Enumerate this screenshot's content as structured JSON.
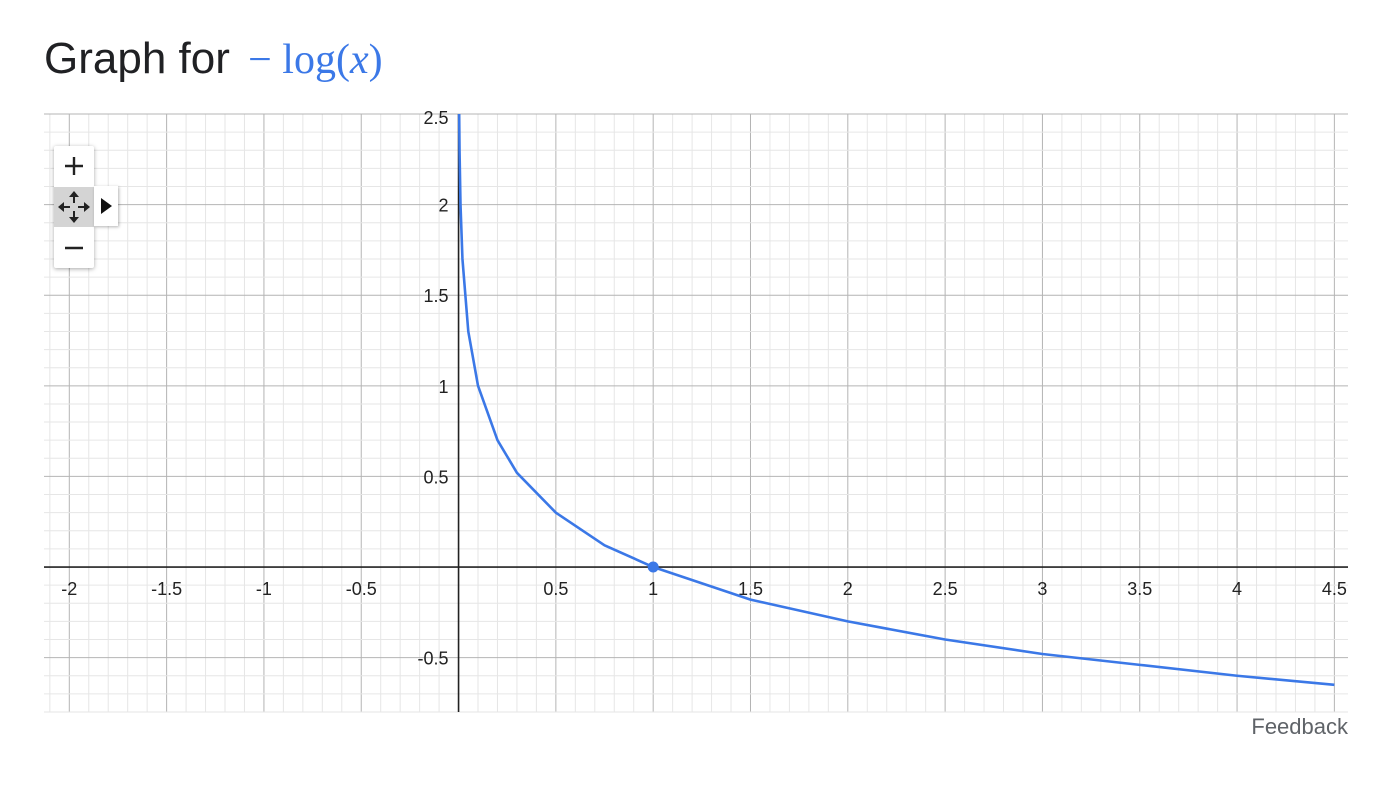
{
  "header": {
    "prefix": "Graph for",
    "func_minus": "−",
    "func_name": "log",
    "func_open": "(",
    "func_var": "x",
    "func_close": ")"
  },
  "controls": {
    "zoom_in": "+",
    "zoom_out": "−"
  },
  "footer": {
    "feedback": "Feedback"
  },
  "colors": {
    "curve": "#3b78e7",
    "grid_major": "#b4b4b4",
    "grid_minor": "#e6e6e6",
    "axis": "#222222"
  },
  "chart_data": {
    "type": "line",
    "title": "",
    "xlabel": "",
    "ylabel": "",
    "xlim": [
      -2.13,
      4.57
    ],
    "ylim": [
      -0.8,
      2.5
    ],
    "x_ticks": [
      -2,
      -1.5,
      -1,
      -0.5,
      0.5,
      1,
      1.5,
      2,
      2.5,
      3,
      3.5,
      4,
      4.5
    ],
    "x_tick_labels": [
      "-2",
      "-1.5",
      "-1",
      "-0.5",
      "0.5",
      "1",
      "1.5",
      "2",
      "2.5",
      "3",
      "3.5",
      "4",
      "4.5"
    ],
    "y_ticks": [
      2.5,
      2,
      1.5,
      1,
      0.5,
      -0.5
    ],
    "y_tick_labels": [
      "2.5",
      "2",
      "1.5",
      "1",
      "0.5",
      "-0.5"
    ],
    "grid": true,
    "series": [
      {
        "x": [
          0.003,
          0.005,
          0.01,
          0.02,
          0.05,
          0.1,
          0.2,
          0.3,
          0.5,
          0.75,
          1,
          1.5,
          2,
          2.5,
          3,
          3.5,
          4,
          4.5
        ],
        "y": [
          2.52,
          2.3,
          2.0,
          1.7,
          1.3,
          1.0,
          0.7,
          0.52,
          0.3,
          0.12,
          0.0,
          -0.18,
          -0.3,
          -0.4,
          -0.48,
          -0.54,
          -0.6,
          -0.65
        ],
        "color": "#3b78e7"
      }
    ],
    "points": [
      {
        "x": 1,
        "y": 0
      }
    ]
  }
}
